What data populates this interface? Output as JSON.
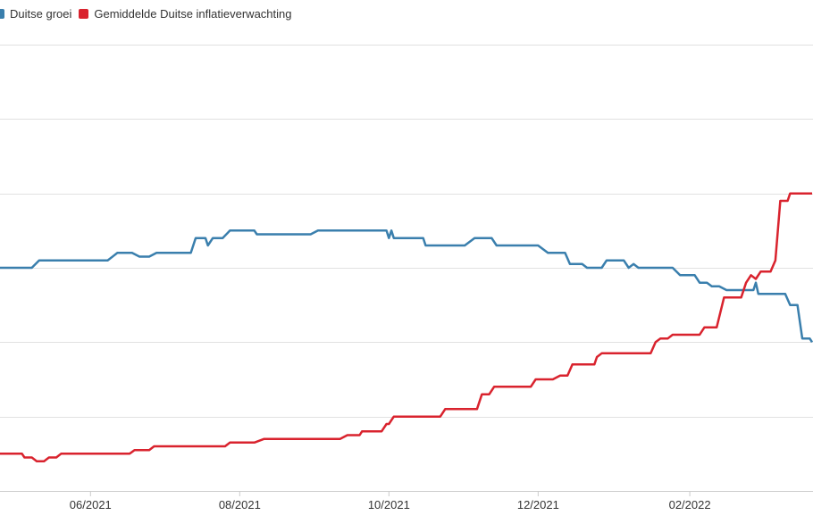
{
  "chart_data": {
    "type": "line",
    "title": "",
    "xlabel": "",
    "ylabel": "",
    "x_ticks": [
      "06/2021",
      "08/2021",
      "10/2021",
      "12/2021",
      "02/2022"
    ],
    "x_range": [
      "2021-04-25",
      "2022-03-23"
    ],
    "ylim": [
      0,
      6
    ],
    "y_gridlines": [
      0,
      1,
      2,
      3,
      4,
      5,
      6
    ],
    "grid": true,
    "legend_position": "top-left",
    "series": [
      {
        "name": "Duitse groei",
        "color": "#3a7fad",
        "points": [
          [
            "2021-04-25",
            3.0
          ],
          [
            "2021-05-08",
            3.0
          ],
          [
            "2021-05-11",
            3.1
          ],
          [
            "2021-06-08",
            3.1
          ],
          [
            "2021-06-12",
            3.2
          ],
          [
            "2021-06-18",
            3.2
          ],
          [
            "2021-06-21",
            3.15
          ],
          [
            "2021-06-25",
            3.15
          ],
          [
            "2021-06-28",
            3.2
          ],
          [
            "2021-07-12",
            3.2
          ],
          [
            "2021-07-14",
            3.4
          ],
          [
            "2021-07-18",
            3.4
          ],
          [
            "2021-07-19",
            3.3
          ],
          [
            "2021-07-21",
            3.4
          ],
          [
            "2021-07-25",
            3.4
          ],
          [
            "2021-07-28",
            3.5
          ],
          [
            "2021-08-07",
            3.5
          ],
          [
            "2021-08-08",
            3.45
          ],
          [
            "2021-08-30",
            3.45
          ],
          [
            "2021-09-02",
            3.5
          ],
          [
            "2021-09-30",
            3.5
          ],
          [
            "2021-10-01",
            3.4
          ],
          [
            "2021-10-02",
            3.5
          ],
          [
            "2021-10-03",
            3.4
          ],
          [
            "2021-10-15",
            3.4
          ],
          [
            "2021-10-16",
            3.3
          ],
          [
            "2021-11-01",
            3.3
          ],
          [
            "2021-11-05",
            3.4
          ],
          [
            "2021-11-12",
            3.4
          ],
          [
            "2021-11-14",
            3.3
          ],
          [
            "2021-12-01",
            3.3
          ],
          [
            "2021-12-05",
            3.2
          ],
          [
            "2021-12-12",
            3.2
          ],
          [
            "2021-12-14",
            3.05
          ],
          [
            "2021-12-19",
            3.05
          ],
          [
            "2021-12-21",
            3.0
          ],
          [
            "2021-12-27",
            3.0
          ],
          [
            "2021-12-29",
            3.1
          ],
          [
            "2022-01-05",
            3.1
          ],
          [
            "2022-01-07",
            3.0
          ],
          [
            "2022-01-09",
            3.05
          ],
          [
            "2022-01-11",
            3.0
          ],
          [
            "2022-01-25",
            3.0
          ],
          [
            "2022-01-28",
            2.9
          ],
          [
            "2022-02-03",
            2.9
          ],
          [
            "2022-02-05",
            2.8
          ],
          [
            "2022-02-08",
            2.8
          ],
          [
            "2022-02-10",
            2.75
          ],
          [
            "2022-02-13",
            2.75
          ],
          [
            "2022-02-16",
            2.7
          ],
          [
            "2022-02-27",
            2.7
          ],
          [
            "2022-02-28",
            2.8
          ],
          [
            "2022-03-01",
            2.65
          ],
          [
            "2022-03-12",
            2.65
          ],
          [
            "2022-03-14",
            2.5
          ],
          [
            "2022-03-17",
            2.5
          ],
          [
            "2022-03-19",
            2.05
          ],
          [
            "2022-03-22",
            2.05
          ],
          [
            "2022-03-23",
            2.0
          ]
        ]
      },
      {
        "name": "Gemiddelde Duitse inflatieverwachting",
        "color": "#d9232e",
        "points": [
          [
            "2021-04-25",
            0.5
          ],
          [
            "2021-05-04",
            0.5
          ],
          [
            "2021-05-05",
            0.45
          ],
          [
            "2021-05-08",
            0.45
          ],
          [
            "2021-05-10",
            0.4
          ],
          [
            "2021-05-13",
            0.4
          ],
          [
            "2021-05-15",
            0.45
          ],
          [
            "2021-05-18",
            0.45
          ],
          [
            "2021-05-20",
            0.5
          ],
          [
            "2021-06-17",
            0.5
          ],
          [
            "2021-06-19",
            0.55
          ],
          [
            "2021-06-25",
            0.55
          ],
          [
            "2021-06-27",
            0.6
          ],
          [
            "2021-07-26",
            0.6
          ],
          [
            "2021-07-28",
            0.65
          ],
          [
            "2021-08-07",
            0.65
          ],
          [
            "2021-08-11",
            0.7
          ],
          [
            "2021-09-11",
            0.7
          ],
          [
            "2021-09-14",
            0.75
          ],
          [
            "2021-09-19",
            0.75
          ],
          [
            "2021-09-20",
            0.8
          ],
          [
            "2021-09-28",
            0.8
          ],
          [
            "2021-09-30",
            0.9
          ],
          [
            "2021-10-01",
            0.9
          ],
          [
            "2021-10-03",
            1.0
          ],
          [
            "2021-10-22",
            1.0
          ],
          [
            "2021-10-24",
            1.1
          ],
          [
            "2021-11-06",
            1.1
          ],
          [
            "2021-11-08",
            1.3
          ],
          [
            "2021-11-11",
            1.3
          ],
          [
            "2021-11-13",
            1.4
          ],
          [
            "2021-11-28",
            1.4
          ],
          [
            "2021-11-30",
            1.5
          ],
          [
            "2021-12-07",
            1.5
          ],
          [
            "2021-12-10",
            1.55
          ],
          [
            "2021-12-13",
            1.55
          ],
          [
            "2021-12-15",
            1.7
          ],
          [
            "2021-12-24",
            1.7
          ],
          [
            "2021-12-25",
            1.8
          ],
          [
            "2021-12-27",
            1.85
          ],
          [
            "2022-01-16",
            1.85
          ],
          [
            "2022-01-18",
            2.0
          ],
          [
            "2022-01-20",
            2.05
          ],
          [
            "2022-01-23",
            2.05
          ],
          [
            "2022-01-25",
            2.1
          ],
          [
            "2022-02-05",
            2.1
          ],
          [
            "2022-02-07",
            2.2
          ],
          [
            "2022-02-12",
            2.2
          ],
          [
            "2022-02-15",
            2.6
          ],
          [
            "2022-02-22",
            2.6
          ],
          [
            "2022-02-24",
            2.8
          ],
          [
            "2022-02-26",
            2.9
          ],
          [
            "2022-02-28",
            2.85
          ],
          [
            "2022-03-02",
            2.95
          ],
          [
            "2022-03-06",
            2.95
          ],
          [
            "2022-03-08",
            3.1
          ],
          [
            "2022-03-10",
            3.9
          ],
          [
            "2022-03-13",
            3.9
          ],
          [
            "2022-03-14",
            4.0
          ],
          [
            "2022-03-23",
            4.0
          ]
        ]
      }
    ]
  }
}
